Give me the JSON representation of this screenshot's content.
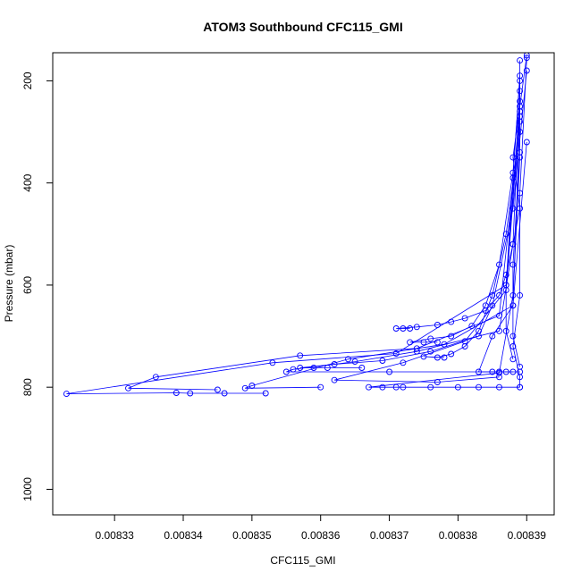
{
  "chart_data": {
    "type": "scatter",
    "title": "ATOM3 Southbound CFC115_GMI",
    "xlabel": "CFC115_GMI",
    "ylabel": "Pressure (mbar)",
    "xlim": [
      0.008321,
      0.008394
    ],
    "ylim": [
      1050,
      145
    ],
    "y_axis_reversed": true,
    "x_ticks": [
      0.00833,
      0.00834,
      0.00835,
      0.00836,
      0.00837,
      0.00838,
      0.00839
    ],
    "x_tick_labels": [
      "0.00833",
      "0.00834",
      "0.00835",
      "0.00836",
      "0.00837",
      "0.00838",
      "0.00839"
    ],
    "y_ticks": [
      200,
      400,
      600,
      800,
      1000
    ],
    "y_tick_labels": [
      "200",
      "400",
      "600",
      "800",
      "1000"
    ],
    "grid": false,
    "marker": "open-circle",
    "connected": true,
    "color": "#0000ff",
    "series": [
      {
        "x": [
          0.00839,
          0.008389,
          0.008388,
          0.008389,
          0.008388,
          0.008387,
          0.008386,
          0.008384,
          0.008381,
          0.008379,
          0.008377,
          0.008374,
          0.008371,
          0.008372,
          0.008373
        ],
        "y": [
          150,
          250,
          350,
          450,
          520,
          580,
          620,
          650,
          665,
          672,
          678,
          682,
          685,
          685,
          685
        ]
      },
      {
        "x": [
          0.008389,
          0.008388,
          0.008386,
          0.008384,
          0.008382,
          0.008379,
          0.008376,
          0.008373,
          0.008375,
          0.008377
        ],
        "y": [
          200,
          380,
          560,
          640,
          680,
          700,
          705,
          712,
          712,
          712
        ]
      },
      {
        "x": [
          0.008389,
          0.008387,
          0.008385,
          0.008383,
          0.008381,
          0.008379,
          0.008377,
          0.008375,
          0.008378
        ],
        "y": [
          300,
          500,
          620,
          690,
          720,
          735,
          742,
          740,
          742
        ]
      },
      {
        "x": [
          0.00839,
          0.008388,
          0.008385,
          0.008383,
          0.008376,
          0.008369,
          0.008362,
          0.008357,
          0.008359,
          0.008361,
          0.008366
        ],
        "y": [
          180,
          450,
          640,
          700,
          730,
          748,
          755,
          762,
          762,
          762,
          762
        ]
      },
      {
        "x": [
          0.008389,
          0.008388,
          0.008386,
          0.008374,
          0.008365,
          0.008356,
          0.008355,
          0.00837,
          0.008385,
          0.008389
        ],
        "y": [
          220,
          520,
          690,
          730,
          750,
          765,
          770,
          770,
          770,
          770
        ]
      },
      {
        "x": [
          0.008389,
          0.008387,
          0.008381,
          0.008372,
          0.008362,
          0.008377,
          0.008386
        ],
        "y": [
          260,
          610,
          710,
          752,
          786,
          790,
          780
        ]
      },
      {
        "x": [
          0.00839,
          0.008388,
          0.008378,
          0.008364,
          0.00835,
          0.008349,
          0.00836
        ],
        "y": [
          320,
          640,
          716,
          745,
          797,
          802,
          800
        ]
      },
      {
        "x": [
          0.008389,
          0.008386,
          0.008374,
          0.008357,
          0.008336,
          0.008332,
          0.008345
        ],
        "y": [
          280,
          660,
          724,
          738,
          780,
          802,
          805
        ]
      },
      {
        "x": [
          0.008389,
          0.008387,
          0.008371,
          0.008353,
          0.008323,
          0.008339,
          0.008341,
          0.008346,
          0.008352
        ],
        "y": [
          240,
          600,
          734,
          752,
          813,
          811,
          812,
          812,
          812
        ]
      },
      {
        "x": [
          0.008389,
          0.008388,
          0.008386,
          0.008367,
          0.008369,
          0.008371,
          0.008372,
          0.008376,
          0.00838,
          0.008383,
          0.008386,
          0.008389
        ],
        "y": [
          350,
          620,
          772,
          800,
          800,
          800,
          800,
          800,
          800,
          800,
          800,
          800
        ]
      },
      {
        "x": [
          0.008389,
          0.008388,
          0.008385,
          0.008383,
          0.008386,
          0.008387,
          0.008388
        ],
        "y": [
          270,
          640,
          700,
          770,
          770,
          770,
          770
        ]
      },
      {
        "x": [
          0.008389,
          0.008389,
          0.008388,
          0.008388,
          0.008389
        ],
        "y": [
          160,
          340,
          560,
          700,
          760
        ]
      },
      {
        "x": [
          0.00839,
          0.008389,
          0.008389,
          0.008388,
          0.008389,
          0.008389
        ],
        "y": [
          155,
          420,
          620,
          720,
          780,
          800
        ]
      },
      {
        "x": [
          0.008389,
          0.008388,
          0.008387,
          0.008387,
          0.008388
        ],
        "y": [
          190,
          390,
          600,
          690,
          745
        ]
      }
    ]
  }
}
